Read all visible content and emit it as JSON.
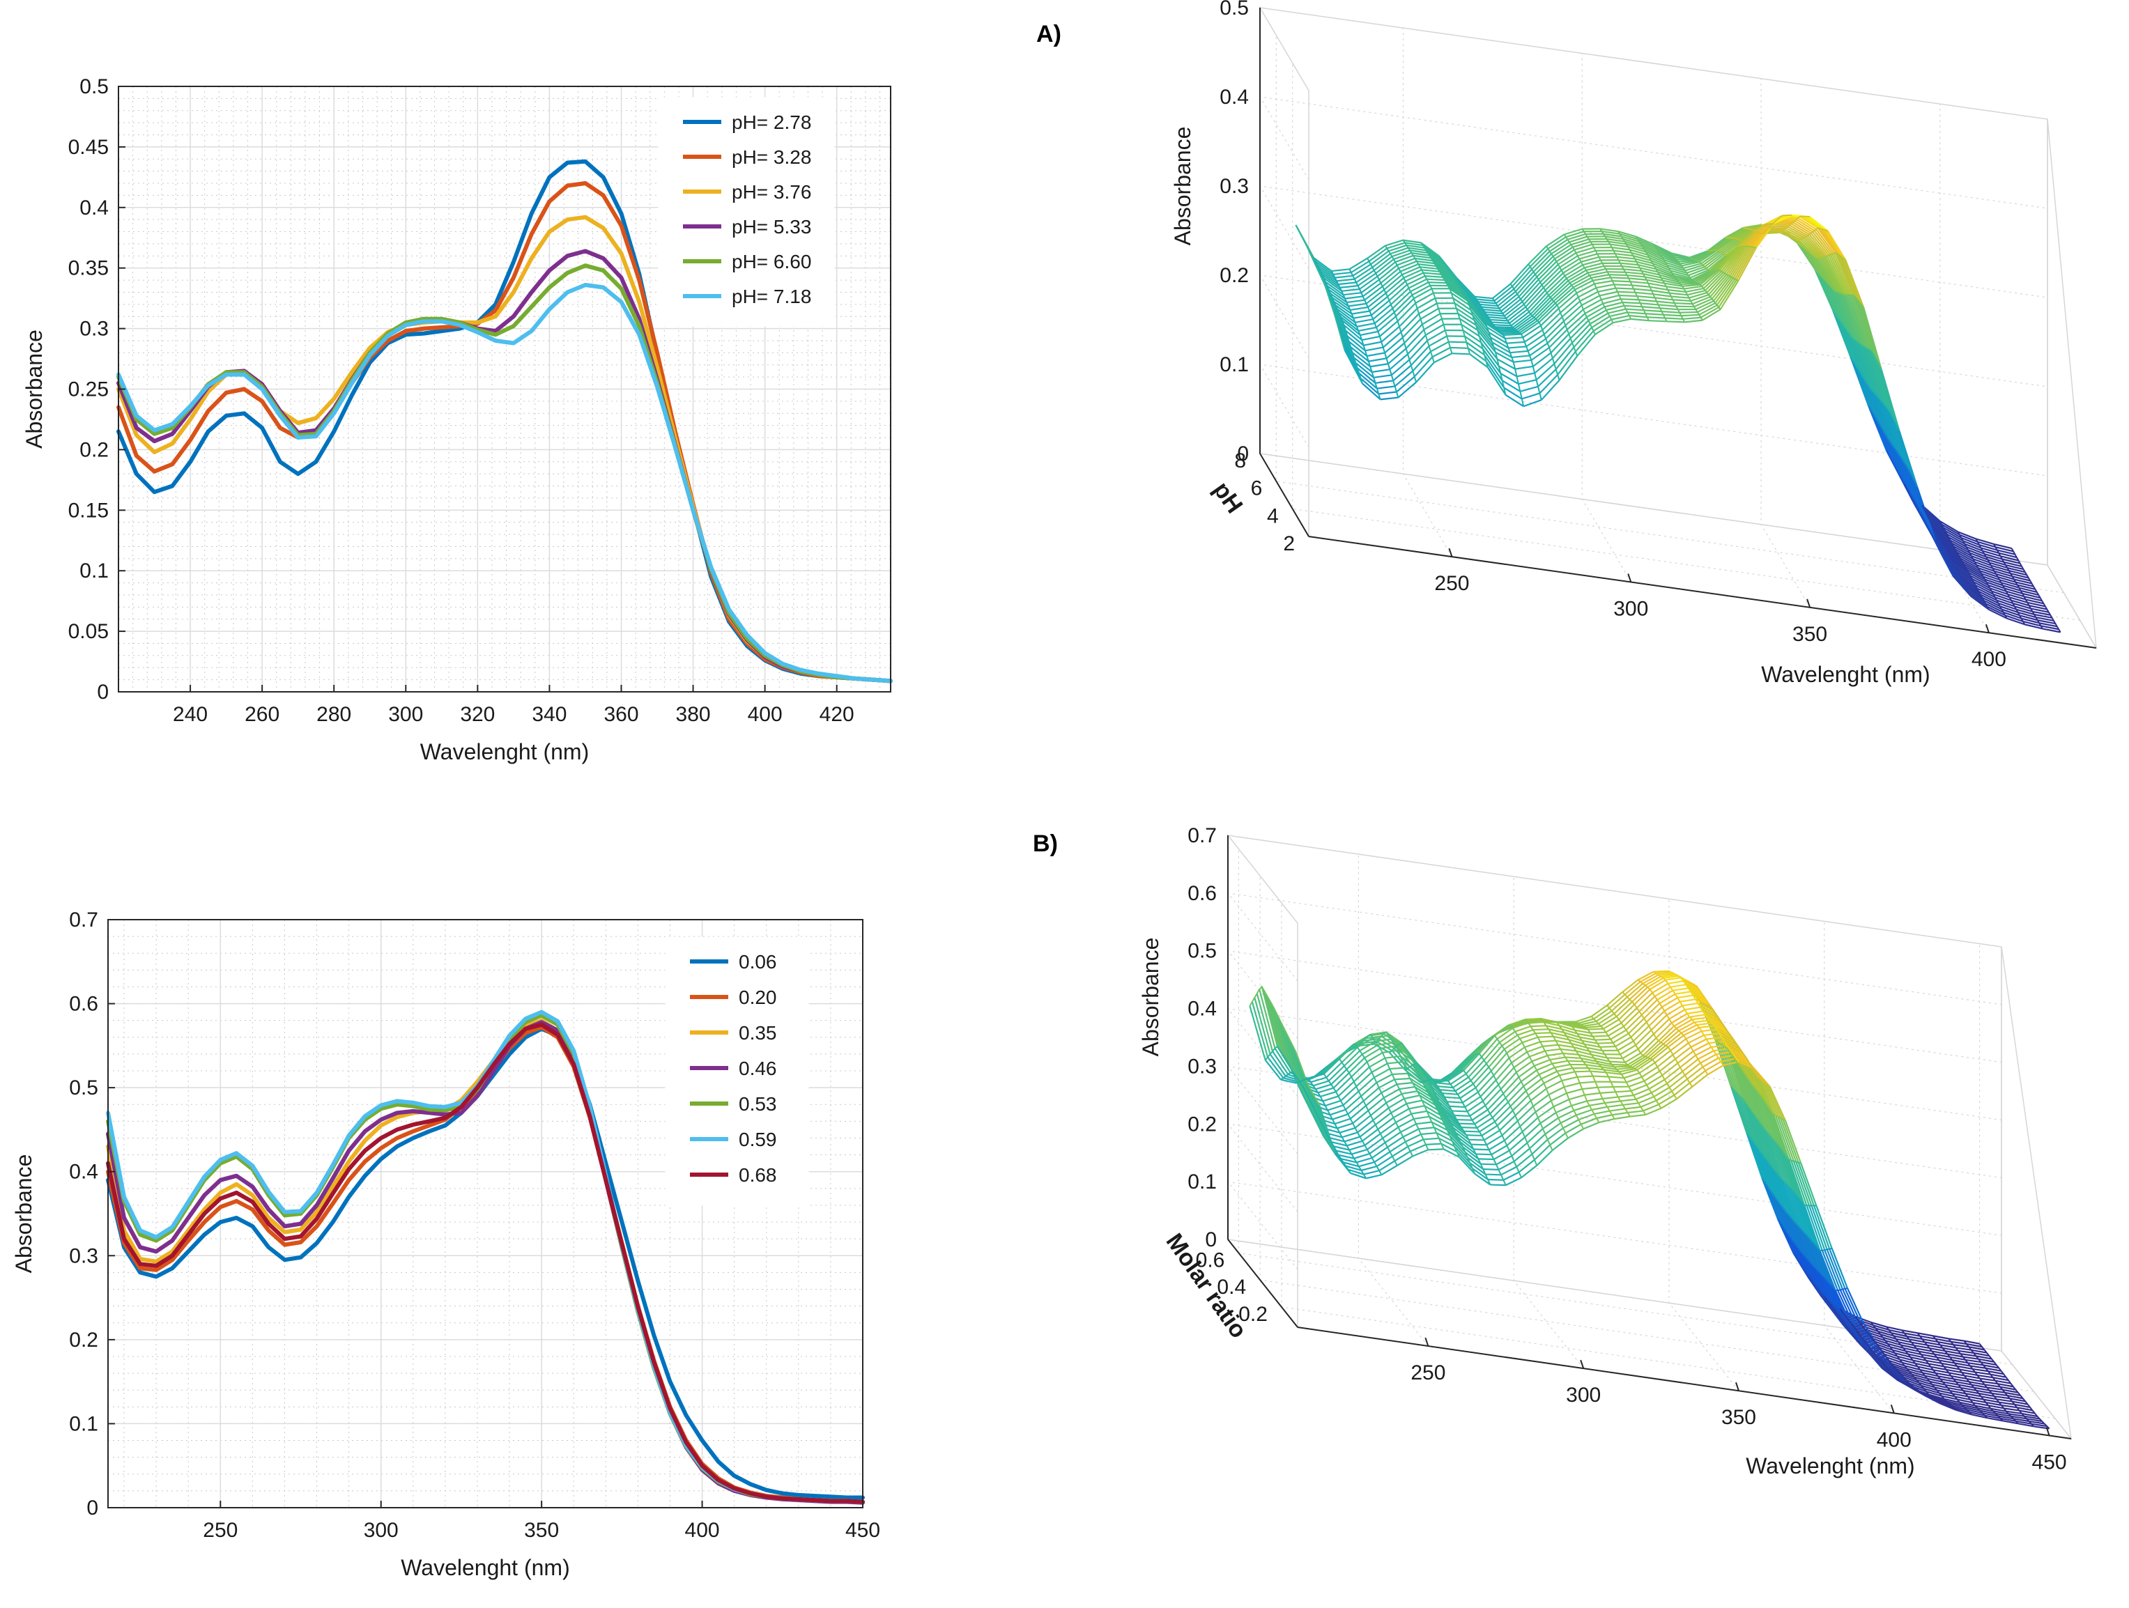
{
  "panel_labels": {
    "a": "A)",
    "b": "B)"
  },
  "chart_data": [
    {
      "id": "a2d",
      "type": "line",
      "xlabel": "Wavelenght (nm)",
      "ylabel": "Absorbance",
      "xlim": [
        220,
        435
      ],
      "ylim": [
        0,
        0.5
      ],
      "xticks": [
        240,
        260,
        280,
        300,
        320,
        340,
        360,
        380,
        400,
        420
      ],
      "yticks": [
        0,
        0.05,
        0.1,
        0.15,
        0.2,
        0.25,
        0.3,
        0.35,
        0.4,
        0.45,
        0.5
      ],
      "x": [
        220,
        225,
        230,
        235,
        240,
        245,
        250,
        255,
        260,
        265,
        270,
        275,
        280,
        285,
        290,
        295,
        300,
        305,
        310,
        315,
        320,
        325,
        330,
        335,
        340,
        345,
        350,
        355,
        360,
        365,
        370,
        375,
        380,
        385,
        390,
        395,
        400,
        405,
        410,
        415,
        420,
        425,
        430,
        435
      ],
      "series": [
        {
          "name": "pH= 2.78",
          "color": "#0072BD",
          "values": [
            0.215,
            0.18,
            0.165,
            0.17,
            0.19,
            0.215,
            0.228,
            0.23,
            0.218,
            0.19,
            0.18,
            0.19,
            0.215,
            0.245,
            0.272,
            0.288,
            0.295,
            0.296,
            0.298,
            0.3,
            0.305,
            0.32,
            0.355,
            0.395,
            0.425,
            0.437,
            0.438,
            0.425,
            0.395,
            0.345,
            0.278,
            0.212,
            0.152,
            0.095,
            0.058,
            0.038,
            0.026,
            0.019,
            0.015,
            0.013,
            0.012,
            0.011,
            0.01,
            0.009
          ]
        },
        {
          "name": "pH= 3.28",
          "color": "#D95319",
          "values": [
            0.235,
            0.195,
            0.182,
            0.188,
            0.208,
            0.232,
            0.247,
            0.25,
            0.24,
            0.218,
            0.21,
            0.215,
            0.232,
            0.255,
            0.276,
            0.29,
            0.298,
            0.3,
            0.301,
            0.302,
            0.304,
            0.315,
            0.342,
            0.378,
            0.405,
            0.418,
            0.42,
            0.41,
            0.385,
            0.34,
            0.28,
            0.215,
            0.155,
            0.098,
            0.06,
            0.04,
            0.027,
            0.02,
            0.016,
            0.013,
            0.012,
            0.011,
            0.01,
            0.009
          ]
        },
        {
          "name": "pH= 3.76",
          "color": "#EDB120",
          "values": [
            0.25,
            0.212,
            0.198,
            0.205,
            0.225,
            0.248,
            0.262,
            0.265,
            0.254,
            0.232,
            0.222,
            0.226,
            0.242,
            0.264,
            0.284,
            0.297,
            0.303,
            0.305,
            0.306,
            0.305,
            0.305,
            0.31,
            0.33,
            0.358,
            0.38,
            0.39,
            0.392,
            0.383,
            0.362,
            0.322,
            0.268,
            0.21,
            0.153,
            0.1,
            0.063,
            0.042,
            0.029,
            0.021,
            0.017,
            0.014,
            0.012,
            0.011,
            0.01,
            0.009
          ]
        },
        {
          "name": "pH= 5.33",
          "color": "#7E2F8E",
          "values": [
            0.255,
            0.218,
            0.207,
            0.213,
            0.232,
            0.252,
            0.264,
            0.265,
            0.254,
            0.232,
            0.214,
            0.216,
            0.234,
            0.258,
            0.28,
            0.295,
            0.303,
            0.306,
            0.307,
            0.305,
            0.3,
            0.298,
            0.31,
            0.33,
            0.348,
            0.36,
            0.364,
            0.358,
            0.342,
            0.308,
            0.258,
            0.204,
            0.15,
            0.1,
            0.064,
            0.043,
            0.029,
            0.021,
            0.017,
            0.014,
            0.012,
            0.011,
            0.01,
            0.009
          ]
        },
        {
          "name": "pH= 6.60",
          "color": "#77AC30",
          "values": [
            0.26,
            0.225,
            0.213,
            0.218,
            0.235,
            0.254,
            0.264,
            0.264,
            0.252,
            0.23,
            0.212,
            0.213,
            0.232,
            0.257,
            0.28,
            0.296,
            0.305,
            0.308,
            0.308,
            0.305,
            0.299,
            0.295,
            0.302,
            0.318,
            0.334,
            0.346,
            0.352,
            0.348,
            0.333,
            0.302,
            0.255,
            0.203,
            0.15,
            0.101,
            0.065,
            0.044,
            0.03,
            0.022,
            0.017,
            0.014,
            0.012,
            0.011,
            0.01,
            0.009
          ]
        },
        {
          "name": "pH= 7.18",
          "color": "#4DBEEE",
          "values": [
            0.262,
            0.228,
            0.216,
            0.221,
            0.236,
            0.253,
            0.262,
            0.262,
            0.25,
            0.228,
            0.21,
            0.211,
            0.23,
            0.255,
            0.278,
            0.294,
            0.303,
            0.306,
            0.306,
            0.303,
            0.297,
            0.29,
            0.288,
            0.298,
            0.316,
            0.33,
            0.336,
            0.334,
            0.322,
            0.295,
            0.252,
            0.202,
            0.15,
            0.103,
            0.068,
            0.047,
            0.032,
            0.023,
            0.018,
            0.015,
            0.013,
            0.011,
            0.01,
            0.009
          ]
        }
      ]
    },
    {
      "id": "b2d",
      "type": "line",
      "xlabel": "Wavelenght (nm)",
      "ylabel": "Absorbance",
      "xlim": [
        215,
        450
      ],
      "ylim": [
        0,
        0.7
      ],
      "xticks": [
        250,
        300,
        350,
        400,
        450
      ],
      "yticks": [
        0,
        0.1,
        0.2,
        0.3,
        0.4,
        0.5,
        0.6,
        0.7
      ],
      "x": [
        215,
        220,
        225,
        230,
        235,
        240,
        245,
        250,
        255,
        260,
        265,
        270,
        275,
        280,
        285,
        290,
        295,
        300,
        305,
        310,
        315,
        320,
        325,
        330,
        335,
        340,
        345,
        350,
        355,
        360,
        365,
        370,
        375,
        380,
        385,
        390,
        395,
        400,
        405,
        410,
        415,
        420,
        425,
        430,
        435,
        440,
        445,
        450
      ],
      "series": [
        {
          "name": "0.06",
          "color": "#0072BD",
          "values": [
            0.39,
            0.31,
            0.28,
            0.275,
            0.285,
            0.305,
            0.325,
            0.34,
            0.345,
            0.335,
            0.31,
            0.295,
            0.298,
            0.315,
            0.34,
            0.37,
            0.395,
            0.415,
            0.43,
            0.44,
            0.448,
            0.455,
            0.47,
            0.49,
            0.515,
            0.54,
            0.56,
            0.57,
            0.562,
            0.535,
            0.48,
            0.41,
            0.34,
            0.27,
            0.205,
            0.15,
            0.11,
            0.08,
            0.055,
            0.038,
            0.028,
            0.021,
            0.017,
            0.015,
            0.014,
            0.013,
            0.012,
            0.012
          ]
        },
        {
          "name": "0.20",
          "color": "#D95319",
          "values": [
            0.4,
            0.315,
            0.285,
            0.283,
            0.295,
            0.318,
            0.34,
            0.358,
            0.365,
            0.355,
            0.33,
            0.313,
            0.316,
            0.335,
            0.362,
            0.39,
            0.412,
            0.428,
            0.44,
            0.448,
            0.455,
            0.462,
            0.477,
            0.497,
            0.522,
            0.547,
            0.565,
            0.572,
            0.56,
            0.525,
            0.465,
            0.39,
            0.315,
            0.24,
            0.175,
            0.12,
            0.08,
            0.052,
            0.035,
            0.024,
            0.018,
            0.014,
            0.012,
            0.01,
            0.009,
            0.008,
            0.008,
            0.007
          ]
        },
        {
          "name": "0.35",
          "color": "#EDB120",
          "values": [
            0.43,
            0.33,
            0.296,
            0.293,
            0.305,
            0.33,
            0.355,
            0.375,
            0.385,
            0.372,
            0.345,
            0.328,
            0.331,
            0.352,
            0.382,
            0.412,
            0.437,
            0.455,
            0.465,
            0.47,
            0.472,
            0.473,
            0.485,
            0.507,
            0.532,
            0.556,
            0.573,
            0.58,
            0.568,
            0.533,
            0.47,
            0.392,
            0.315,
            0.238,
            0.172,
            0.118,
            0.078,
            0.05,
            0.033,
            0.023,
            0.017,
            0.013,
            0.011,
            0.01,
            0.009,
            0.008,
            0.008,
            0.007
          ]
        },
        {
          "name": "0.46",
          "color": "#7E2F8E",
          "values": [
            0.445,
            0.345,
            0.31,
            0.305,
            0.318,
            0.345,
            0.372,
            0.39,
            0.395,
            0.382,
            0.355,
            0.335,
            0.338,
            0.36,
            0.392,
            0.425,
            0.448,
            0.462,
            0.47,
            0.472,
            0.47,
            0.468,
            0.47,
            0.49,
            0.52,
            0.55,
            0.57,
            0.578,
            0.568,
            0.535,
            0.47,
            0.39,
            0.31,
            0.235,
            0.168,
            0.112,
            0.072,
            0.045,
            0.029,
            0.02,
            0.015,
            0.012,
            0.01,
            0.009,
            0.008,
            0.007,
            0.007,
            0.006
          ]
        },
        {
          "name": "0.53",
          "color": "#77AC30",
          "values": [
            0.46,
            0.365,
            0.325,
            0.318,
            0.33,
            0.36,
            0.39,
            0.41,
            0.418,
            0.403,
            0.372,
            0.348,
            0.35,
            0.372,
            0.405,
            0.44,
            0.462,
            0.475,
            0.48,
            0.478,
            0.474,
            0.473,
            0.478,
            0.498,
            0.528,
            0.558,
            0.578,
            0.586,
            0.575,
            0.54,
            0.475,
            0.392,
            0.31,
            0.233,
            0.166,
            0.112,
            0.073,
            0.047,
            0.031,
            0.022,
            0.016,
            0.013,
            0.011,
            0.01,
            0.009,
            0.008,
            0.008,
            0.007
          ]
        },
        {
          "name": "0.59",
          "color": "#4DBEEE",
          "values": [
            0.47,
            0.37,
            0.33,
            0.322,
            0.334,
            0.364,
            0.394,
            0.414,
            0.422,
            0.407,
            0.376,
            0.352,
            0.353,
            0.375,
            0.408,
            0.443,
            0.466,
            0.479,
            0.484,
            0.482,
            0.478,
            0.477,
            0.482,
            0.502,
            0.532,
            0.562,
            0.582,
            0.59,
            0.579,
            0.544,
            0.478,
            0.395,
            0.312,
            0.235,
            0.168,
            0.113,
            0.074,
            0.048,
            0.032,
            0.022,
            0.017,
            0.013,
            0.011,
            0.01,
            0.009,
            0.008,
            0.008,
            0.007
          ]
        },
        {
          "name": "0.68",
          "color": "#A2142F",
          "values": [
            0.41,
            0.32,
            0.29,
            0.288,
            0.3,
            0.325,
            0.35,
            0.368,
            0.375,
            0.364,
            0.338,
            0.32,
            0.323,
            0.344,
            0.374,
            0.403,
            0.425,
            0.44,
            0.45,
            0.456,
            0.46,
            0.464,
            0.477,
            0.5,
            0.527,
            0.552,
            0.57,
            0.575,
            0.563,
            0.528,
            0.466,
            0.39,
            0.314,
            0.239,
            0.173,
            0.118,
            0.078,
            0.05,
            0.033,
            0.023,
            0.017,
            0.013,
            0.011,
            0.01,
            0.009,
            0.008,
            0.008,
            0.007
          ]
        }
      ]
    },
    {
      "id": "a3d",
      "type": "surface",
      "xlabel": "Wavelenght (nm)",
      "ylabel": "pH",
      "zlabel": "Absorbance",
      "xlim": [
        220,
        420
      ],
      "ylim": [
        2,
        8
      ],
      "zlim": [
        0,
        0.5
      ],
      "xticks": [
        250,
        300,
        350,
        400
      ],
      "yticks": [
        2,
        4,
        6,
        8
      ],
      "zticks": [
        0,
        0.1,
        0.2,
        0.3,
        0.4,
        0.5
      ],
      "source_series": 0
    },
    {
      "id": "b3d",
      "type": "surface",
      "xlabel": "Wavelenght (nm)",
      "ylabel": "Molar ratio",
      "zlabel": "Absorbance",
      "xlim": [
        215,
        450
      ],
      "ylim": [
        0.05,
        0.7
      ],
      "zlim": [
        0,
        0.7
      ],
      "xticks": [
        250,
        300,
        350,
        400,
        450
      ],
      "yticks": [
        0.2,
        0.4,
        0.6
      ],
      "zticks": [
        0,
        0.1,
        0.2,
        0.3,
        0.4,
        0.5,
        0.6,
        0.7
      ],
      "source_series": 1
    }
  ]
}
